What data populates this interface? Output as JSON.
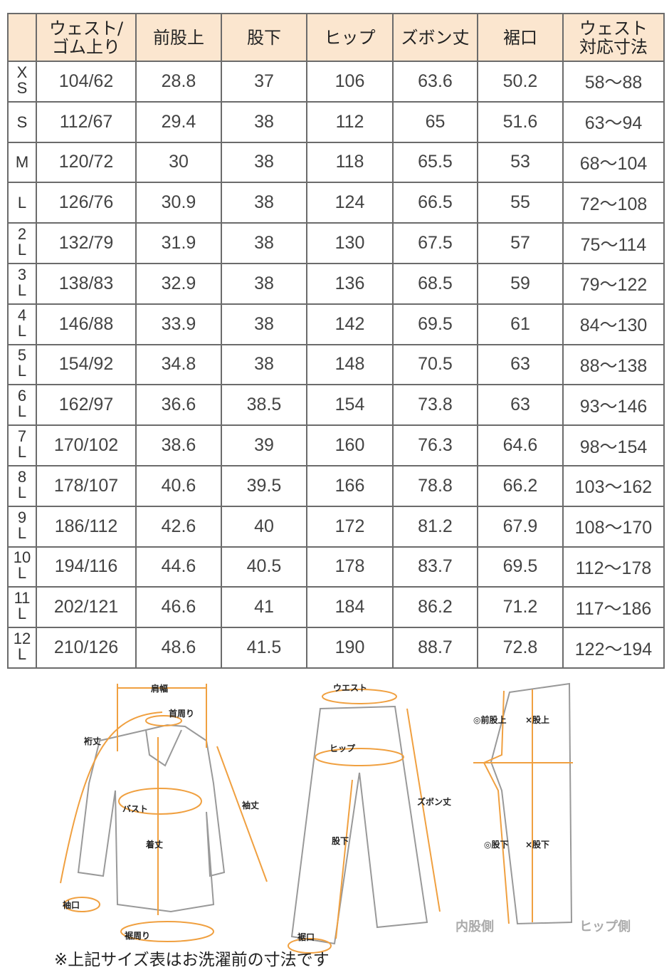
{
  "headers": [
    "",
    "ウェスト/\nゴム上り",
    "前股上",
    "股下",
    "ヒップ",
    "ズボン丈",
    "裾口",
    "ウェスト\n対応寸法"
  ],
  "rows": [
    [
      "XS",
      "104/62",
      "28.8",
      "37",
      "106",
      "63.6",
      "50.2",
      "58～88"
    ],
    [
      "S",
      "112/67",
      "29.4",
      "38",
      "112",
      "65",
      "51.6",
      "63～94"
    ],
    [
      "M",
      "120/72",
      "30",
      "38",
      "118",
      "65.5",
      "53",
      "68～104"
    ],
    [
      "L",
      "126/76",
      "30.9",
      "38",
      "124",
      "66.5",
      "55",
      "72～108"
    ],
    [
      "2L",
      "132/79",
      "31.9",
      "38",
      "130",
      "67.5",
      "57",
      "75～114"
    ],
    [
      "3L",
      "138/83",
      "32.9",
      "38",
      "136",
      "68.5",
      "59",
      "79～122"
    ],
    [
      "4L",
      "146/88",
      "33.9",
      "38",
      "142",
      "69.5",
      "61",
      "84～130"
    ],
    [
      "5L",
      "154/92",
      "34.8",
      "38",
      "148",
      "70.5",
      "63",
      "88～138"
    ],
    [
      "6L",
      "162/97",
      "36.6",
      "38.5",
      "154",
      "73.8",
      "63",
      "93～146"
    ],
    [
      "7L",
      "170/102",
      "38.6",
      "39",
      "160",
      "76.3",
      "64.6",
      "98～154"
    ],
    [
      "8L",
      "178/107",
      "40.6",
      "39.5",
      "166",
      "78.8",
      "66.2",
      "103～162"
    ],
    [
      "9L",
      "186/112",
      "42.6",
      "40",
      "172",
      "81.2",
      "67.9",
      "108～170"
    ],
    [
      "10L",
      "194/116",
      "44.6",
      "40.5",
      "178",
      "83.7",
      "69.5",
      "112～178"
    ],
    [
      "11L",
      "202/121",
      "46.6",
      "41",
      "184",
      "86.2",
      "71.2",
      "117～186"
    ],
    [
      "12L",
      "210/126",
      "48.6",
      "41.5",
      "190",
      "88.7",
      "72.8",
      "122～194"
    ]
  ],
  "diagram": {
    "shirt": {
      "shoulder": "肩幅",
      "neck": "首周り",
      "yuki": "裄丈",
      "sleeve": "袖丈",
      "bust": "バスト",
      "length": "着丈",
      "cuff": "袖口",
      "hem": "裾周り"
    },
    "pants": {
      "waist": "ウエスト",
      "hip": "ヒップ",
      "inseam": "股下",
      "length": "ズボン丈",
      "hem": "裾口"
    },
    "side": {
      "front_rise": "◎前股上",
      "rise": "×股上",
      "inseam_o": "◎股下",
      "inseam_x": "×股下",
      "inner": "内股側",
      "hip_side": "ヒップ側"
    }
  },
  "note": "※上記サイズ表はお洗濯前の寸法です",
  "colors": {
    "header_bg": "#fbe6cf",
    "border": "#6b6b6b",
    "accent": "#f0a040"
  }
}
